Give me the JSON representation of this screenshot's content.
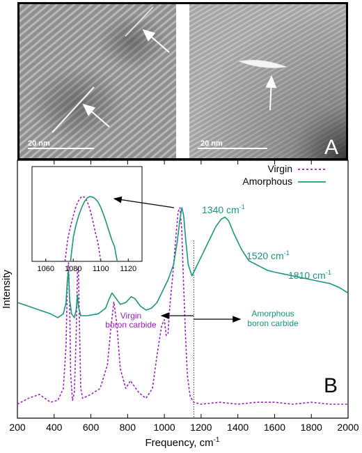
{
  "panel_a": {
    "label": "A",
    "left_image": {
      "scale_label": "20 nm"
    },
    "right_image": {
      "scale_label": "20 nm"
    }
  },
  "panel_b": {
    "label": "B",
    "annotations": {
      "peak_1340": "1340 cm",
      "peak_1520": "1520 cm",
      "peak_1810": "1810 cm",
      "superscript": "-1",
      "virgin_line1": "Virgin",
      "virgin_line2": "boron carbide",
      "amorphous_line1": "Amorphous",
      "amorphous_line2": "boron carbide"
    }
  },
  "colors": {
    "virgin": "#9b1fc2",
    "amorphous": "#16987a",
    "axis": "#000000"
  },
  "chart_data": {
    "type": "line",
    "title": "",
    "xlabel": "Frequency, cm",
    "xlabel_superscript": "-1",
    "ylabel": "Intensity",
    "xlim": [
      200,
      2000
    ],
    "x_ticks": [
      200,
      400,
      600,
      800,
      1000,
      1200,
      1400,
      1600,
      1800,
      2000
    ],
    "ylim": [
      0,
      1
    ],
    "y_tick_labels": false,
    "legend": {
      "placement": "top-right",
      "entries": [
        "Virgin",
        "Amorphous"
      ]
    },
    "boundary_line_x": 1160,
    "series": [
      {
        "name": "Virgin",
        "style": "dashed",
        "x": [
          200,
          260,
          320,
          380,
          420,
          450,
          465,
          472,
          478,
          484,
          490,
          500,
          510,
          520,
          527,
          532,
          537,
          545,
          555,
          600,
          650,
          690,
          710,
          725,
          740,
          760,
          790,
          815,
          830,
          860,
          900,
          935,
          960,
          985,
          1000,
          1010,
          1020,
          1030,
          1045,
          1060,
          1075,
          1085,
          1095,
          1105,
          1115,
          1125,
          1140,
          1160,
          1200,
          1300,
          1400,
          1500,
          1600,
          1700,
          1800,
          1900,
          2000
        ],
        "y": [
          0.0,
          0.03,
          0.05,
          0.01,
          0.02,
          0.08,
          0.3,
          0.62,
          0.72,
          0.55,
          0.15,
          0.02,
          0.06,
          0.35,
          0.68,
          0.7,
          0.45,
          0.08,
          0.03,
          0.05,
          0.08,
          0.2,
          0.4,
          0.52,
          0.42,
          0.18,
          0.08,
          0.12,
          0.1,
          0.06,
          0.03,
          0.08,
          0.25,
          0.4,
          0.43,
          0.35,
          0.36,
          0.5,
          0.65,
          0.82,
          0.98,
          1.0,
          0.88,
          0.6,
          0.35,
          0.15,
          0.04,
          0.01,
          0.0,
          0.01,
          0.0,
          0.01,
          0.01,
          0.0,
          0.01,
          0.0,
          0.0
        ]
      },
      {
        "name": "Amorphous",
        "style": "solid",
        "x": [
          200,
          260,
          320,
          380,
          420,
          450,
          465,
          472,
          478,
          484,
          495,
          510,
          520,
          527,
          532,
          545,
          580,
          640,
          680,
          700,
          715,
          730,
          760,
          790,
          820,
          840,
          870,
          900,
          930,
          960,
          990,
          1020,
          1050,
          1070,
          1085,
          1095,
          1105,
          1115,
          1130,
          1150,
          1170,
          1200,
          1240,
          1280,
          1310,
          1330,
          1350,
          1380,
          1420,
          1460,
          1500,
          1520,
          1560,
          1600,
          1650,
          1700,
          1750,
          1800,
          1850,
          1900,
          1950,
          2000
        ],
        "y": [
          0.5,
          0.48,
          0.46,
          0.44,
          0.42,
          0.44,
          0.5,
          0.62,
          0.67,
          0.52,
          0.44,
          0.42,
          0.46,
          0.54,
          0.48,
          0.43,
          0.43,
          0.44,
          0.47,
          0.52,
          0.55,
          0.53,
          0.49,
          0.5,
          0.53,
          0.52,
          0.48,
          0.46,
          0.47,
          0.5,
          0.56,
          0.62,
          0.7,
          0.82,
          0.94,
          1.0,
          0.96,
          0.84,
          0.7,
          0.64,
          0.68,
          0.74,
          0.82,
          0.9,
          0.94,
          0.95,
          0.93,
          0.86,
          0.78,
          0.72,
          0.7,
          0.69,
          0.67,
          0.66,
          0.65,
          0.64,
          0.63,
          0.62,
          0.61,
          0.6,
          0.58,
          0.55
        ]
      }
    ],
    "inset": {
      "type": "line",
      "xlim": [
        1050,
        1130
      ],
      "x_ticks": [
        1060,
        1080,
        1100,
        1120
      ],
      "series": [
        {
          "name": "Virgin",
          "style": "dashed",
          "x": [
            1074,
            1076,
            1078,
            1080,
            1082,
            1084,
            1086,
            1088,
            1090,
            1092,
            1094,
            1096,
            1098,
            1100
          ],
          "y": [
            0.0,
            0.22,
            0.45,
            0.65,
            0.82,
            0.93,
            1.0,
            0.99,
            0.92,
            0.78,
            0.58,
            0.35,
            0.14,
            0.0
          ]
        },
        {
          "name": "Amorphous",
          "style": "solid",
          "x": [
            1078,
            1080,
            1082,
            1084,
            1086,
            1088,
            1090,
            1092,
            1094,
            1096,
            1098,
            1100,
            1102,
            1104,
            1106,
            1108,
            1110,
            1112
          ],
          "y": [
            0.0,
            0.25,
            0.48,
            0.65,
            0.79,
            0.9,
            0.97,
            1.0,
            0.99,
            0.96,
            0.9,
            0.8,
            0.67,
            0.52,
            0.36,
            0.2,
            0.08,
            0.0
          ]
        }
      ]
    }
  }
}
